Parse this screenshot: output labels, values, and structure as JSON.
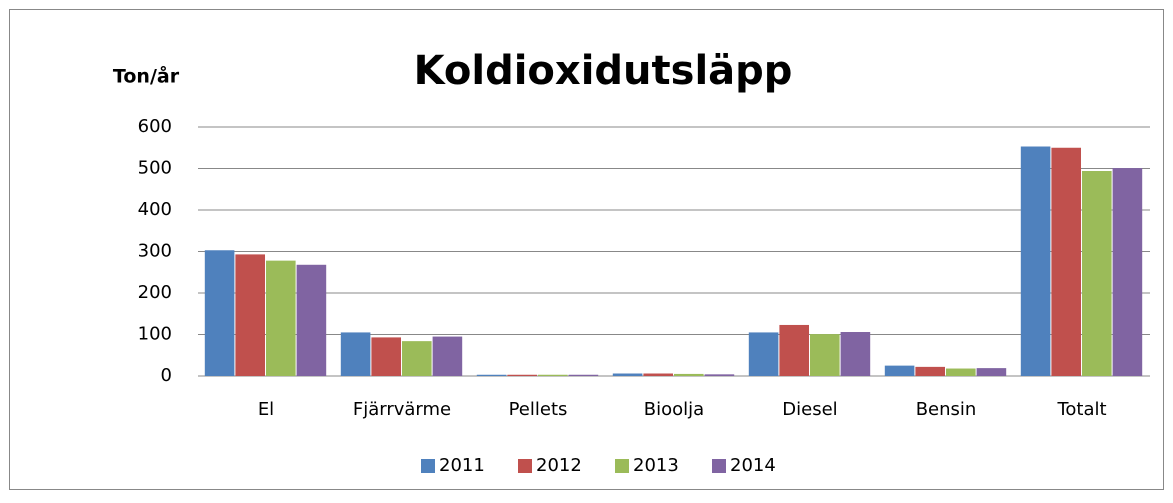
{
  "chart_data": {
    "type": "bar",
    "title": "Koldioxidutsläpp",
    "y_label": "Ton/år",
    "categories": [
      "El",
      "Fjärrvärme",
      "Pellets",
      "Bioolja",
      "Diesel",
      "Bensin",
      "Totalt"
    ],
    "series": [
      {
        "name": "2011",
        "color": "#4f81bd",
        "values": [
          303,
          105,
          3,
          6,
          105,
          25,
          553
        ]
      },
      {
        "name": "2012",
        "color": "#c0504d",
        "values": [
          293,
          93,
          3,
          6,
          123,
          22,
          550
        ]
      },
      {
        "name": "2013",
        "color": "#9bbb59",
        "values": [
          278,
          84,
          3,
          5,
          101,
          18,
          494
        ]
      },
      {
        "name": "2014",
        "color": "#8064a2",
        "values": [
          268,
          95,
          3,
          4,
          106,
          19,
          501
        ]
      }
    ],
    "ylim": [
      0,
      600
    ],
    "yticks": [
      0,
      100,
      200,
      300,
      400,
      500,
      600
    ],
    "grid": true,
    "legend": "bottom"
  }
}
